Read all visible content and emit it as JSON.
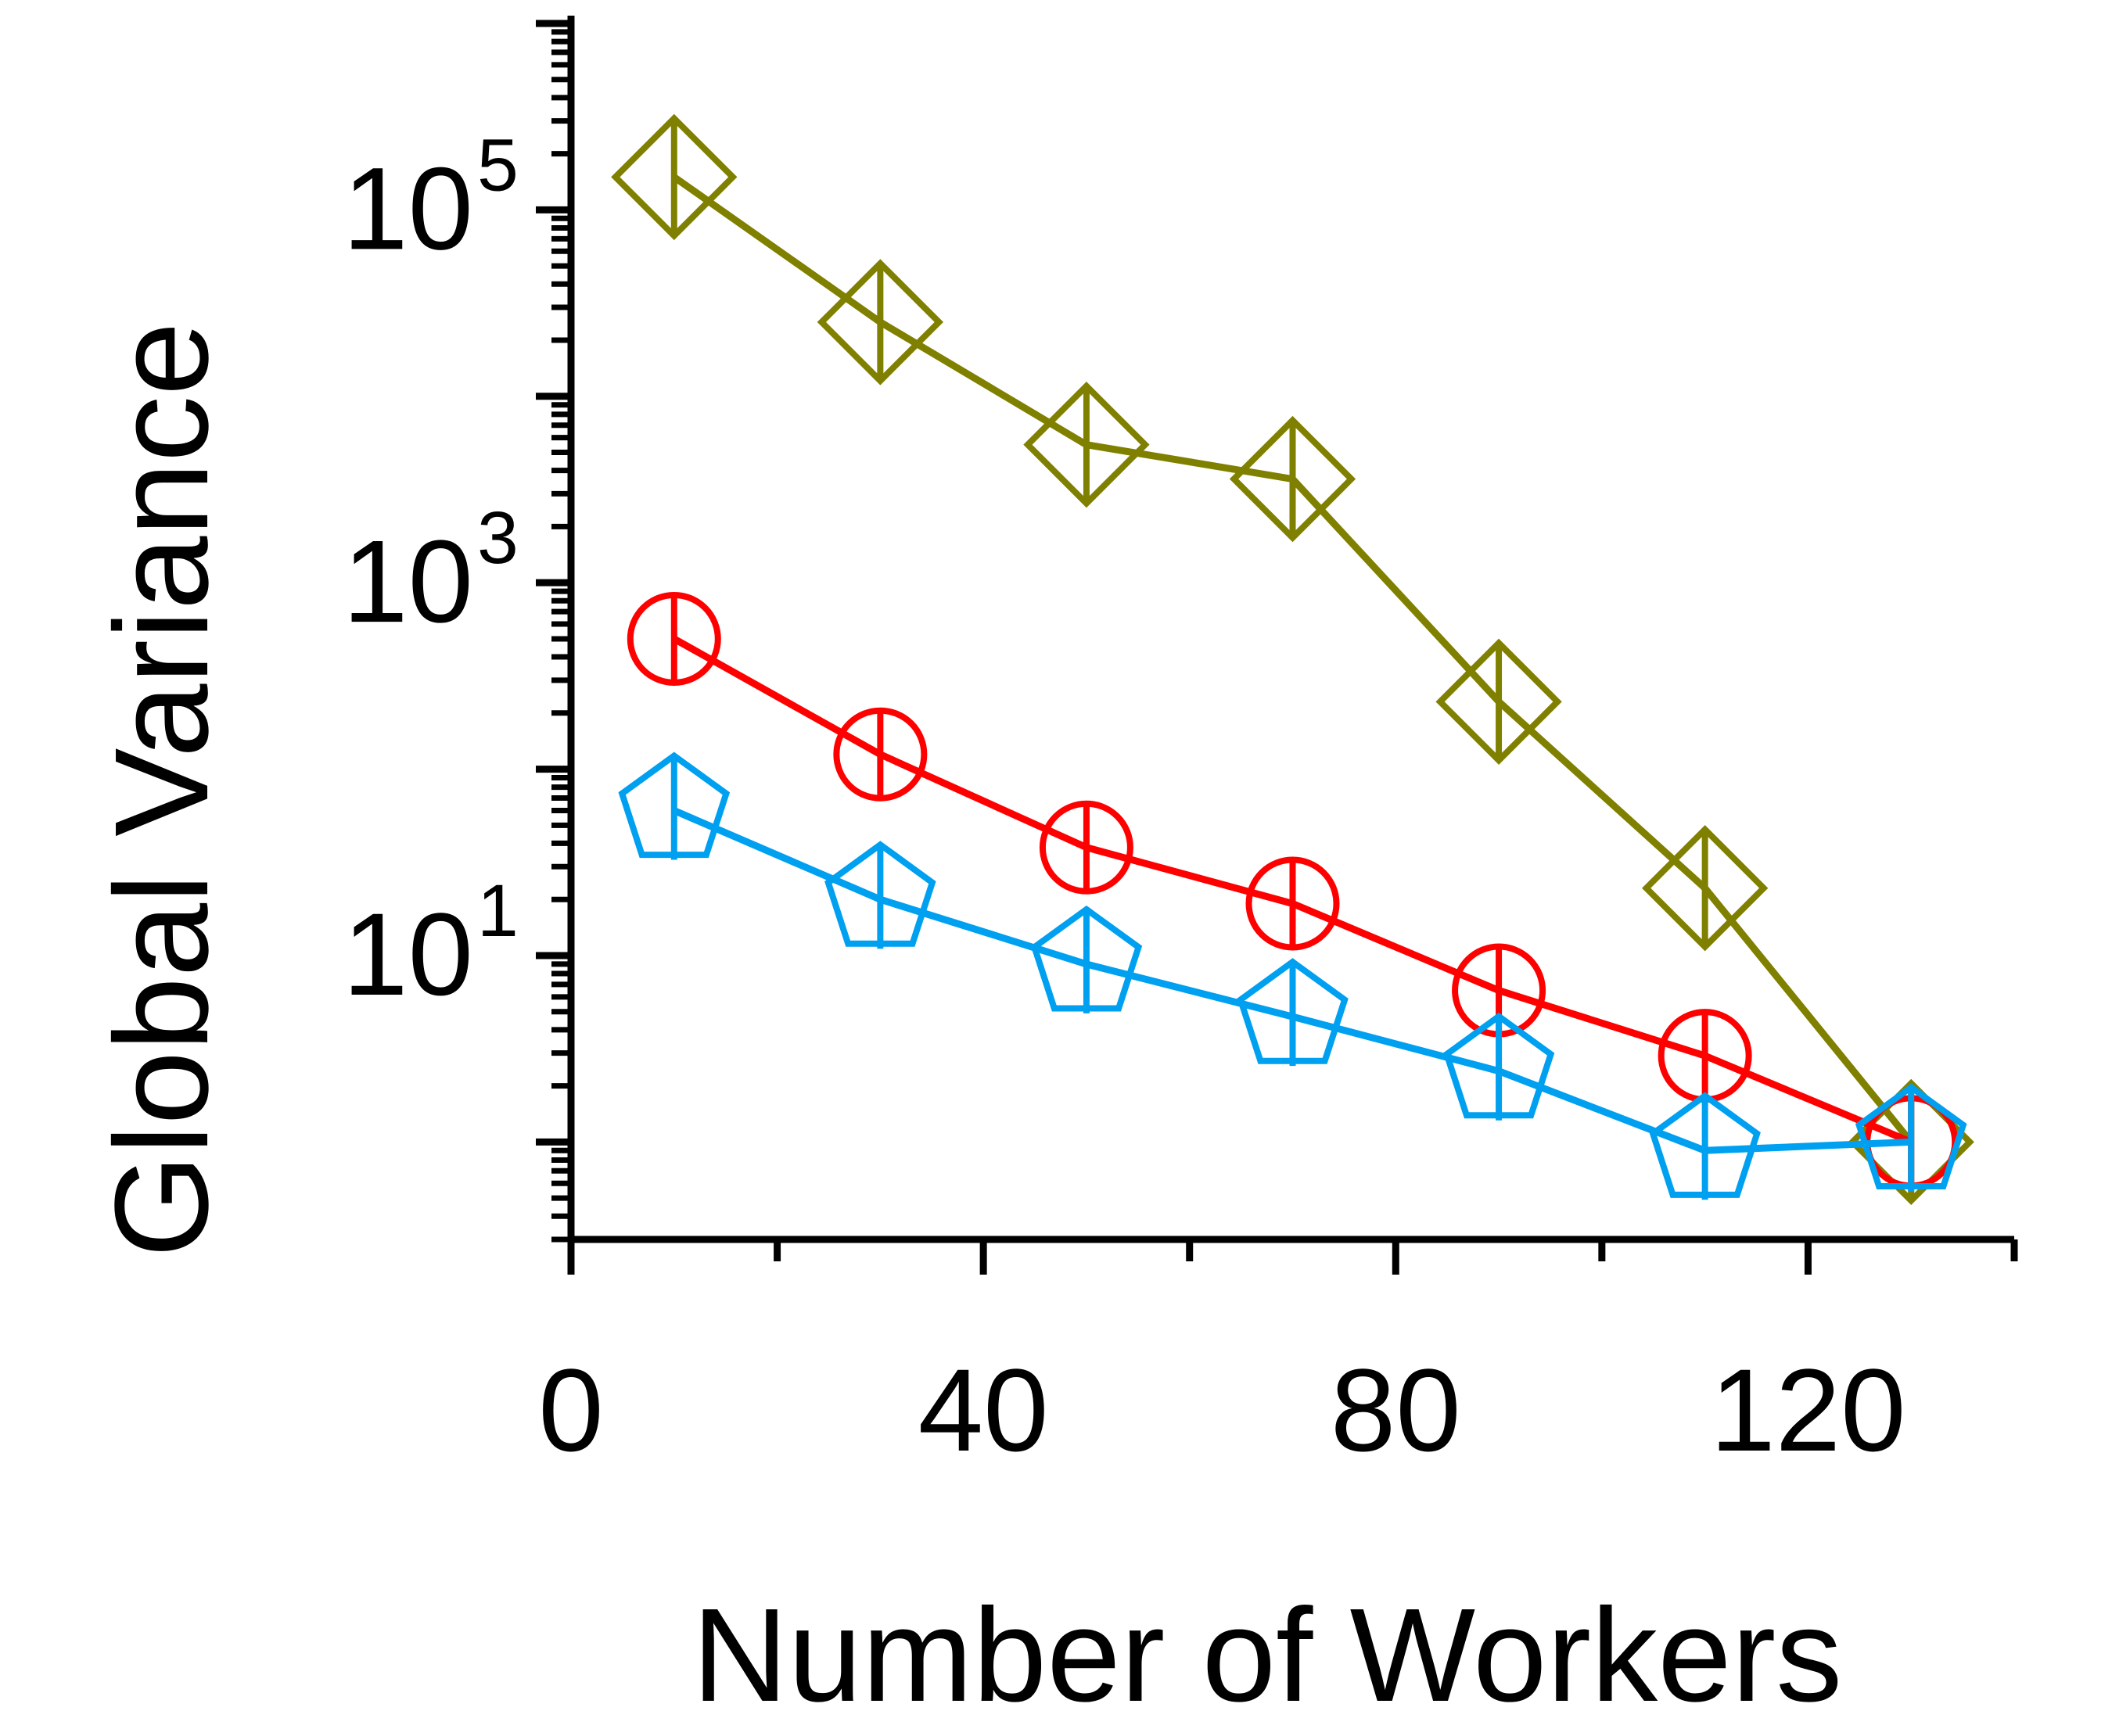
{
  "chart_data": {
    "type": "line",
    "title": "",
    "xlabel": "Number of Workers",
    "ylabel": "Global Variance",
    "x_scale": "linear",
    "y_scale": "log",
    "xlim": [
      0,
      140
    ],
    "ylim": [
      0.3,
      1000000
    ],
    "x_ticks": [
      0,
      40,
      80,
      120
    ],
    "y_ticks": [
      {
        "value": 10,
        "base": "10",
        "exp": "1"
      },
      {
        "value": 1000,
        "base": "10",
        "exp": "3"
      },
      {
        "value": 100000,
        "base": "10",
        "exp": "5"
      }
    ],
    "grid": false,
    "legend": "none",
    "x": [
      10,
      30,
      50,
      70,
      90,
      110,
      130
    ],
    "series": [
      {
        "color": "#808000",
        "marker": "diamond",
        "values": [
          150000,
          25000,
          5500,
          3600,
          230,
          23,
          1.0
        ]
      },
      {
        "color": "#ff0000",
        "marker": "circle",
        "values": [
          500,
          120,
          38,
          19,
          6.5,
          2.9,
          1.0
        ]
      },
      {
        "color": "#00a0f0",
        "marker": "pentagon",
        "values": [
          60,
          20,
          9,
          4.7,
          2.4,
          0.9,
          1.0
        ]
      }
    ]
  }
}
